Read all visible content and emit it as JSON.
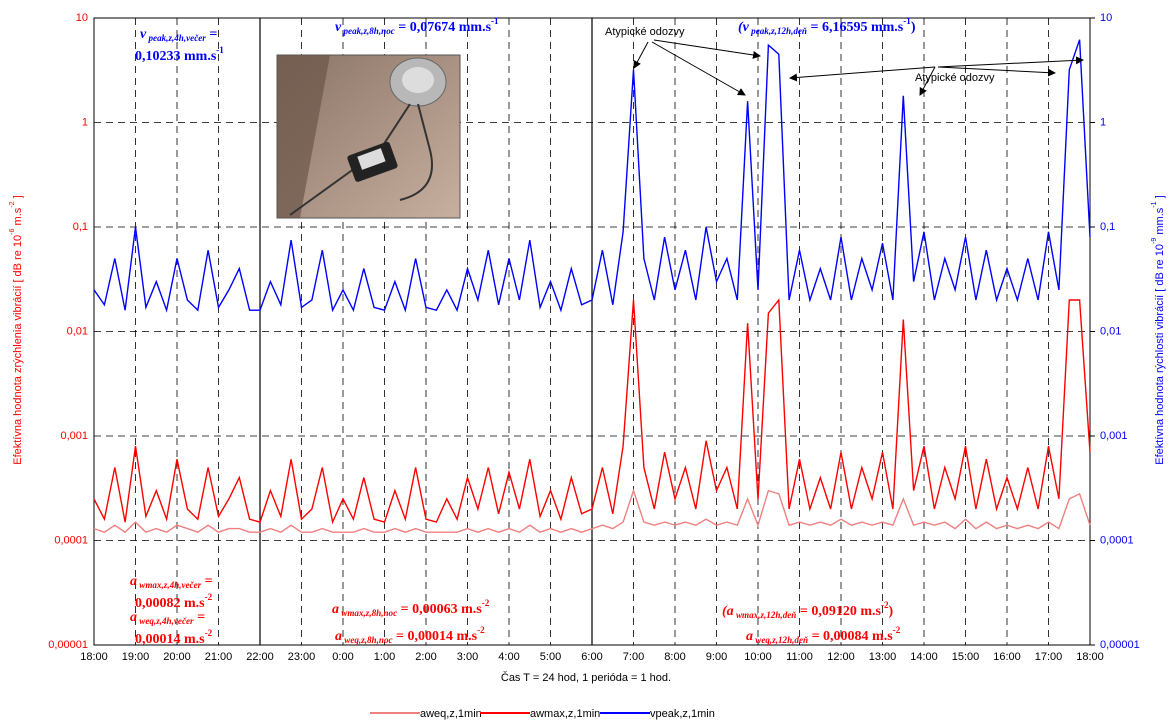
{
  "chart_data": {
    "type": "line",
    "x_label": "Čas T = 24 hod, 1 perióda = 1 hod.",
    "y_label": [
      {
        "text": "Efektívna hodnota zrýchlenia vibrácií [ dB re 10",
        "style": "normal"
      },
      {
        "text": "-6",
        "style": "sup"
      },
      {
        "text": " m.s",
        "style": "normal"
      },
      {
        "text": "-2",
        "style": "sup"
      },
      {
        "text": " ]",
        "style": "normal"
      }
    ],
    "y2_label": [
      {
        "text": "Efektívna hodnota rýchlosti  vibrácií [ dB re 10",
        "style": "normal"
      },
      {
        "text": "-9",
        "style": "sup"
      },
      {
        "text": " mm.s",
        "style": "normal"
      },
      {
        "text": "-1",
        "style": "sup"
      },
      {
        "text": " ]",
        "style": "normal"
      }
    ],
    "log_scale": true,
    "grid": true,
    "legend": "bottom",
    "xlim": [
      0,
      24
    ],
    "xticks": [
      {
        "value": 0,
        "label": "18:00"
      },
      {
        "value": 1,
        "label": "19:00"
      },
      {
        "value": 2,
        "label": "20:00"
      },
      {
        "value": 3,
        "label": "21:00"
      },
      {
        "value": 4,
        "label": "22:00"
      },
      {
        "value": 5,
        "label": "23:00"
      },
      {
        "value": 6,
        "label": "0:00"
      },
      {
        "value": 7,
        "label": "1:00"
      },
      {
        "value": 8,
        "label": "2:00"
      },
      {
        "value": 9,
        "label": "3:00"
      },
      {
        "value": 10,
        "label": "4:00"
      },
      {
        "value": 11,
        "label": "5:00"
      },
      {
        "value": 12,
        "label": "6:00"
      },
      {
        "value": 13,
        "label": "7:00"
      },
      {
        "value": 14,
        "label": "8:00"
      },
      {
        "value": 15,
        "label": "9:00"
      },
      {
        "value": 16,
        "label": "10:00"
      },
      {
        "value": 17,
        "label": "11:00"
      },
      {
        "value": 18,
        "label": "12:00"
      },
      {
        "value": 19,
        "label": "13:00"
      },
      {
        "value": 20,
        "label": "14:00"
      },
      {
        "value": 21,
        "label": "15:00"
      },
      {
        "value": 22,
        "label": "16:00"
      },
      {
        "value": 23,
        "label": "17:00"
      },
      {
        "value": 24,
        "label": "18:00"
      }
    ],
    "ylim": [
      1e-05,
      10
    ],
    "yticks": [
      {
        "value": 1e-05,
        "label": "0,00001"
      },
      {
        "value": 0.0001,
        "label": "0,0001"
      },
      {
        "value": 0.001,
        "label": "0,001"
      },
      {
        "value": 0.01,
        "label": "0,01"
      },
      {
        "value": 0.1,
        "label": "0,1"
      },
      1,
      10
    ],
    "y2lim": [
      1e-05,
      10
    ],
    "y2ticks": [
      {
        "value": 1e-05,
        "label": "0,00001"
      },
      {
        "value": 0.0001,
        "label": "0,0001"
      },
      {
        "value": 0.001,
        "label": "0,001"
      },
      {
        "value": 0.01,
        "label": "0,01"
      },
      {
        "value": 0.1,
        "label": "0,1"
      },
      1,
      10
    ],
    "x": [
      0,
      0.25,
      0.5,
      0.75,
      1,
      1.25,
      1.5,
      1.75,
      2,
      2.25,
      2.5,
      2.75,
      3,
      3.25,
      3.5,
      3.75,
      4,
      4.25,
      4.5,
      4.75,
      5,
      5.25,
      5.5,
      5.75,
      6,
      6.25,
      6.5,
      6.75,
      7,
      7.25,
      7.5,
      7.75,
      8,
      8.25,
      8.5,
      8.75,
      9,
      9.25,
      9.5,
      9.75,
      10,
      10.25,
      10.5,
      10.75,
      11,
      11.25,
      11.5,
      11.75,
      12,
      12.25,
      12.5,
      12.75,
      13,
      13.25,
      13.5,
      13.75,
      14,
      14.25,
      14.5,
      14.75,
      15,
      15.25,
      15.5,
      15.75,
      16,
      16.25,
      16.5,
      16.75,
      17,
      17.25,
      17.5,
      17.75,
      18,
      18.25,
      18.5,
      18.75,
      19,
      19.25,
      19.5,
      19.75,
      20,
      20.25,
      20.5,
      20.75,
      21,
      21.25,
      21.5,
      21.75,
      22,
      22.25,
      22.5,
      22.75,
      23,
      23.25,
      23.5,
      23.75,
      24
    ],
    "series": [
      {
        "name": "aweq,z,1min",
        "color": "#f08080",
        "values": [
          0.00013,
          0.00012,
          0.00014,
          0.00012,
          0.00015,
          0.00012,
          0.00013,
          0.00012,
          0.00014,
          0.00013,
          0.00012,
          0.00014,
          0.00012,
          0.00013,
          0.00013,
          0.00012,
          0.00012,
          0.00013,
          0.00012,
          0.00014,
          0.00012,
          0.00012,
          0.00013,
          0.00012,
          0.00012,
          0.00012,
          0.00013,
          0.00012,
          0.00012,
          0.00013,
          0.00012,
          0.00013,
          0.00012,
          0.00012,
          0.00012,
          0.00012,
          0.00013,
          0.00012,
          0.00013,
          0.00012,
          0.00013,
          0.00012,
          0.00014,
          0.00012,
          0.00013,
          0.00012,
          0.00013,
          0.00012,
          0.00013,
          0.00014,
          0.00013,
          0.00015,
          0.0003,
          0.00015,
          0.00014,
          0.00015,
          0.00014,
          0.00015,
          0.00014,
          0.00016,
          0.00014,
          0.00015,
          0.00014,
          0.00025,
          0.00014,
          0.0003,
          0.00028,
          0.00014,
          0.00015,
          0.00014,
          0.00015,
          0.00014,
          0.00016,
          0.00014,
          0.00015,
          0.00014,
          0.00015,
          0.00014,
          0.00025,
          0.00014,
          0.00015,
          0.00014,
          0.00015,
          0.00013,
          0.00016,
          0.00013,
          0.00015,
          0.00013,
          0.00014,
          0.00013,
          0.00014,
          0.00013,
          0.00015,
          0.00013,
          0.00025,
          0.00028,
          0.00014
        ]
      },
      {
        "name": "awmax,z,1min",
        "color": "#ff0000",
        "values": [
          0.00025,
          0.00016,
          0.0005,
          0.00015,
          0.0008,
          0.00017,
          0.0003,
          0.00016,
          0.0006,
          0.0002,
          0.00016,
          0.0005,
          0.00017,
          0.00025,
          0.0004,
          0.00016,
          0.00015,
          0.0003,
          0.00017,
          0.0006,
          0.00016,
          0.0002,
          0.0005,
          0.00015,
          0.00025,
          0.00016,
          0.0004,
          0.00016,
          0.00015,
          0.0003,
          0.00016,
          0.0005,
          0.00016,
          0.00015,
          0.00025,
          0.00016,
          0.0004,
          0.0002,
          0.0005,
          0.00018,
          0.00045,
          0.0002,
          0.0006,
          0.00017,
          0.0003,
          0.00016,
          0.0004,
          0.00018,
          0.0002,
          0.0005,
          0.00018,
          0.0008,
          0.02,
          0.0005,
          0.0002,
          0.0007,
          0.00025,
          0.0005,
          0.0002,
          0.0009,
          0.0003,
          0.0005,
          0.0002,
          0.012,
          0.00025,
          0.015,
          0.02,
          0.0002,
          0.0006,
          0.0002,
          0.0004,
          0.0002,
          0.0007,
          0.0002,
          0.0005,
          0.00025,
          0.0007,
          0.0002,
          0.013,
          0.0003,
          0.0008,
          0.0002,
          0.0005,
          0.00025,
          0.0008,
          0.0002,
          0.0006,
          0.0002,
          0.0004,
          0.0002,
          0.0005,
          0.0002,
          0.0008,
          0.00025,
          0.02,
          0.02,
          0.0007
        ]
      },
      {
        "name": "vpeak,z,1min",
        "color": "#0000ff",
        "axis": "y2",
        "values": [
          0.025,
          0.018,
          0.05,
          0.016,
          0.1,
          0.017,
          0.03,
          0.016,
          0.05,
          0.02,
          0.016,
          0.06,
          0.017,
          0.025,
          0.04,
          0.016,
          0.016,
          0.03,
          0.018,
          0.075,
          0.017,
          0.02,
          0.06,
          0.016,
          0.025,
          0.016,
          0.04,
          0.017,
          0.016,
          0.03,
          0.016,
          0.05,
          0.017,
          0.016,
          0.025,
          0.016,
          0.04,
          0.02,
          0.06,
          0.018,
          0.05,
          0.02,
          0.075,
          0.017,
          0.03,
          0.016,
          0.04,
          0.018,
          0.02,
          0.06,
          0.018,
          0.09,
          3.2,
          0.05,
          0.02,
          0.08,
          0.025,
          0.06,
          0.02,
          0.1,
          0.03,
          0.05,
          0.02,
          1.6,
          0.025,
          5.5,
          4.5,
          0.02,
          0.06,
          0.02,
          0.04,
          0.02,
          0.08,
          0.02,
          0.05,
          0.025,
          0.07,
          0.02,
          1.8,
          0.03,
          0.09,
          0.02,
          0.05,
          0.025,
          0.08,
          0.02,
          0.06,
          0.02,
          0.04,
          0.02,
          0.05,
          0.02,
          0.09,
          0.025,
          3.2,
          6.2,
          0.08
        ]
      }
    ],
    "annotations": [
      {
        "color": "#0000ff",
        "lines": [
          [
            {
              "text": "v",
              "style": "italic"
            },
            {
              "text": " peak,z,4h,večer",
              "style": "sub"
            },
            {
              "text": " =",
              "style": "normal"
            }
          ],
          [
            {
              "text": "0,10233 mm.s",
              "style": "normal"
            },
            {
              "text": "-1",
              "style": "sup"
            }
          ]
        ]
      },
      {
        "color": "#0000ff",
        "lines": [
          [
            {
              "text": "v",
              "style": "italic"
            },
            {
              "text": " peak,z,8h,noc",
              "style": "sub"
            },
            {
              "text": " = 0,07674 mm.s",
              "style": "normal"
            },
            {
              "text": "-1",
              "style": "sup"
            }
          ]
        ]
      },
      {
        "color": "#0000ff",
        "lines": [
          [
            {
              "text": "(v",
              "style": "italic"
            },
            {
              "text": " peak,z,12h,deň",
              "style": "sub"
            },
            {
              "text": " = 6,16595 mm.s",
              "style": "normal"
            },
            {
              "text": "-1",
              "style": "sup"
            },
            {
              "text": ")",
              "style": "normal"
            }
          ]
        ]
      },
      {
        "color": "#ff0000",
        "lines": [
          [
            {
              "text": "a",
              "style": "italic"
            },
            {
              "text": " wmax,z,4h,večer",
              "style": "sub"
            },
            {
              "text": " =",
              "style": "normal"
            }
          ],
          [
            {
              "text": "0,00082 m.s",
              "style": "normal"
            },
            {
              "text": "-2",
              "style": "sup"
            }
          ]
        ]
      },
      {
        "color": "#ff0000",
        "lines": [
          [
            {
              "text": "a",
              "style": "italic"
            },
            {
              "text": " weq,z,4h,večer",
              "style": "sub"
            },
            {
              "text": " =",
              "style": "normal"
            }
          ],
          [
            {
              "text": "0,00014 m.s",
              "style": "normal"
            },
            {
              "text": "-2",
              "style": "sup"
            }
          ]
        ]
      },
      {
        "color": "#ff0000",
        "lines": [
          [
            {
              "text": "a",
              "style": "italic"
            },
            {
              "text": " wmax,z,8h,noc",
              "style": "sub"
            },
            {
              "text": " = 0,00063 m.s",
              "style": "normal"
            },
            {
              "text": "-2",
              "style": "sup"
            }
          ]
        ]
      },
      {
        "color": "#ff0000",
        "lines": [
          [
            {
              "text": "a",
              "style": "italic"
            },
            {
              "text": " weq,z,8h,noc",
              "style": "sub"
            },
            {
              "text": " = 0,00014 m.s",
              "style": "normal"
            },
            {
              "text": "-2",
              "style": "sup"
            }
          ]
        ]
      },
      {
        "color": "#ff0000",
        "lines": [
          [
            {
              "text": "(a",
              "style": "italic"
            },
            {
              "text": " wmax,z,12h,deň",
              "style": "sub"
            },
            {
              "text": " = 0,09120 m.s",
              "style": "normal"
            },
            {
              "text": "-2",
              "style": "sup"
            },
            {
              "text": ")",
              "style": "normal"
            }
          ]
        ]
      },
      {
        "color": "#ff0000",
        "lines": [
          [
            {
              "text": "a",
              "style": "italic"
            },
            {
              "text": " weq,z,12h,deň",
              "style": "sub"
            },
            {
              "text": " = 0,00084 m.s",
              "style": "normal"
            },
            {
              "text": "-2",
              "style": "sup"
            }
          ]
        ]
      }
    ],
    "notes": [
      "Atypické odozvy",
      "Atypické odozvy"
    ]
  }
}
